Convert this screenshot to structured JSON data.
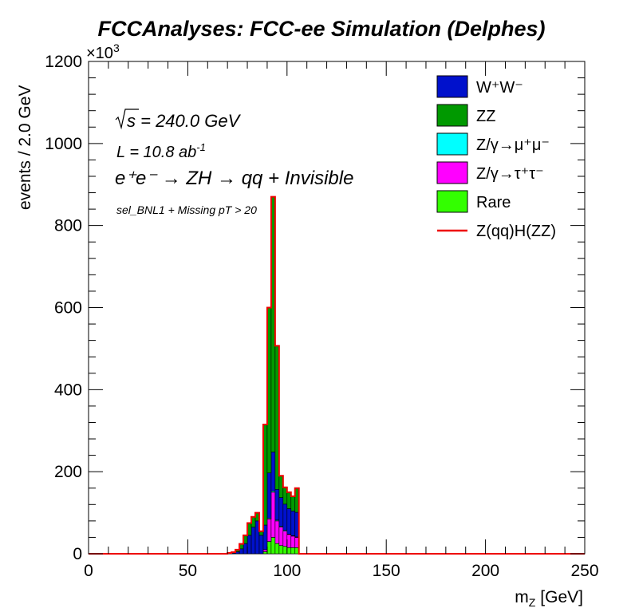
{
  "chart_data": {
    "type": "bar",
    "title": "FCCAnalyses: FCC-ee Simulation (Delphes)",
    "xlabel": "m",
    "xlabel_sub": "Z",
    "xlabel_unit": "[GeV]",
    "ylabel": "events / 2.0 GeV",
    "y_exponent_base": "×10",
    "y_exponent": "3",
    "xlim": [
      0,
      250
    ],
    "ylim": [
      0,
      1200
    ],
    "x_ticks": [
      "0",
      "50",
      "100",
      "150",
      "200",
      "250"
    ],
    "y_ticks": [
      "0",
      "200",
      "400",
      "600",
      "800",
      "1000",
      "1200"
    ],
    "bin_width": 2,
    "grid": false,
    "legend_position": "top-right",
    "annotations": {
      "sqrt_s": "s",
      "sqrt_s_value": " = 240.0 GeV",
      "lumi_prefix": "L = 10.8 ab",
      "lumi_sup": "-1",
      "process": "e⁺e⁻ → ZH → qq + Invisible",
      "selection": "sel_BNL1 + Missing pT > 20"
    },
    "bin_centers": [
      67,
      69,
      71,
      73,
      75,
      77,
      79,
      81,
      83,
      85,
      87,
      89,
      91,
      93,
      95,
      97,
      99,
      101,
      103,
      105
    ],
    "series": [
      {
        "name": "Rare",
        "legend_label": "Rare",
        "color": "#33ff00",
        "values": [
          0,
          0,
          0,
          0,
          0,
          0,
          0,
          0,
          0,
          0,
          0,
          5,
          30,
          40,
          25,
          20,
          18,
          15,
          15,
          15
        ]
      },
      {
        "name": "Z/γ→τ⁺τ⁻",
        "legend_label": "Z/γ→τ⁺τ⁻",
        "color": "#ff00ff",
        "values": [
          0,
          0,
          0,
          0,
          0,
          0,
          0,
          0,
          0,
          0,
          0,
          5,
          55,
          110,
          55,
          45,
          37,
          32,
          28,
          25
        ]
      },
      {
        "name": "Z/γ→μ⁺μ⁻",
        "legend_label": "Z/γ→μ⁺μ⁻",
        "color": "#00ffff",
        "values": [
          0,
          0,
          0,
          0,
          0,
          0,
          0,
          0,
          0,
          0,
          0,
          0,
          2,
          3,
          2,
          2,
          2,
          1,
          1,
          1
        ]
      },
      {
        "name": "W⁺W⁻",
        "legend_label": "W⁺W⁻",
        "color": "#0011cc",
        "values": [
          0,
          0,
          1,
          2,
          5,
          12,
          25,
          45,
          65,
          80,
          45,
          60,
          110,
          95,
          75,
          70,
          64,
          62,
          60,
          60
        ]
      },
      {
        "name": "ZZ",
        "legend_label": "ZZ",
        "color": "#009900",
        "values": [
          0,
          0,
          1,
          2,
          5,
          12,
          20,
          30,
          25,
          20,
          10,
          245,
          403,
          621,
          350,
          53,
          41,
          40,
          36,
          59
        ]
      }
    ],
    "signal": {
      "name": "Z(qq)H(ZZ)",
      "legend_label": "Z(qq)H(ZZ)",
      "color": "#ee0000",
      "values": [
        0,
        0,
        2,
        4,
        10,
        24,
        45,
        75,
        90,
        100,
        55,
        315,
        600,
        870,
        507,
        190,
        162,
        150,
        140,
        160
      ]
    },
    "legend": [
      {
        "series": "W⁺W⁻",
        "kind": "fill",
        "color": "#0011cc"
      },
      {
        "series": "ZZ",
        "kind": "fill",
        "color": "#009900"
      },
      {
        "series": "Z/γ→μ⁺μ⁻",
        "kind": "fill",
        "color": "#00ffff"
      },
      {
        "series": "Z/γ→τ⁺τ⁻",
        "kind": "fill",
        "color": "#ff00ff"
      },
      {
        "series": "Rare",
        "kind": "fill",
        "color": "#33ff00"
      },
      {
        "series": "Z(qq)H(ZZ)",
        "kind": "line",
        "color": "#ee0000"
      }
    ]
  }
}
